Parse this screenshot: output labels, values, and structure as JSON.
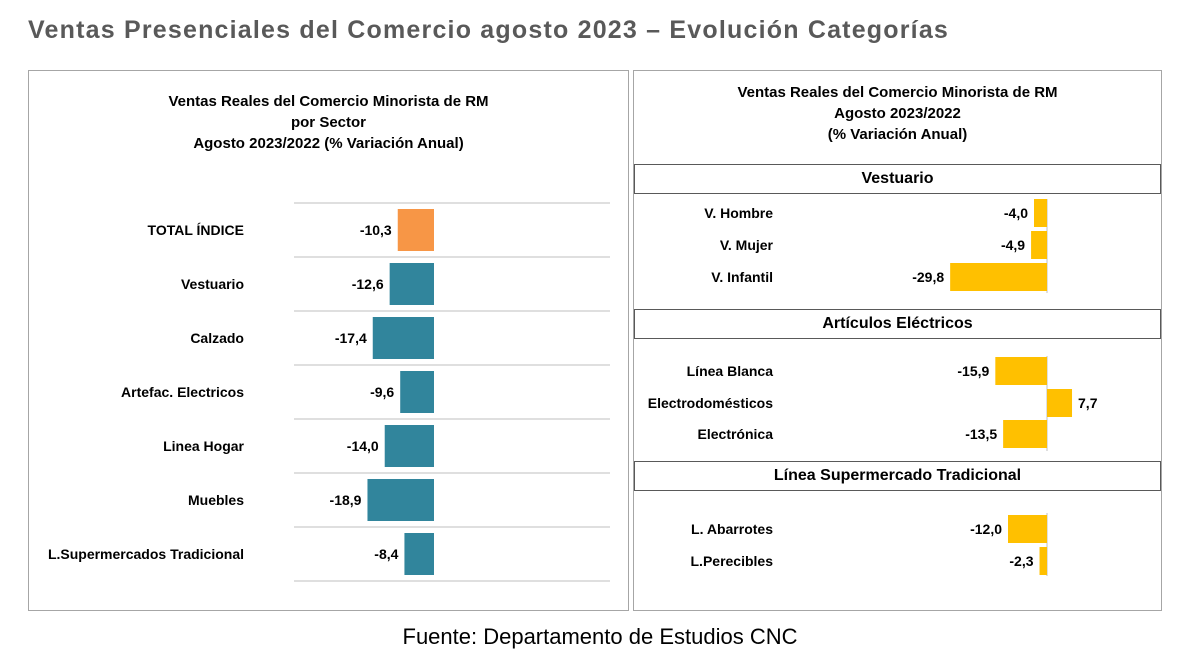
{
  "page_title": "Ventas Presenciales del Comercio agosto 2023 – Evolución Categorías",
  "source": "Fuente: Departamento de Estudios CNC",
  "left_chart": {
    "title_lines": [
      "Ventas Reales del Comercio Minorista de RM",
      "por Sector",
      "Agosto 2023/2022 (% Variación Anual)"
    ]
  },
  "right_chart": {
    "title_lines": [
      "Ventas Reales del Comercio Minorista de RM",
      "Agosto 2023/2022",
      "(% Variación Anual)"
    ],
    "sections": [
      "Vestuario",
      "Artículos Eléctricos",
      "Línea Supermercado Tradicional"
    ]
  },
  "chart_data": [
    {
      "type": "bar",
      "orientation": "horizontal",
      "title": "Ventas Reales del Comercio Minorista de RM por Sector Agosto 2023/2022 (% Variación Anual)",
      "categories": [
        "TOTAL ÍNDICE",
        "Vestuario",
        "Calzado",
        "Artefac. Electricos",
        "Linea Hogar",
        "Muebles",
        "L.Supermercados Tradicional"
      ],
      "values": [
        -10.3,
        -12.6,
        -17.4,
        -9.6,
        -14.0,
        -18.9,
        -8.4
      ],
      "value_labels": [
        "-10,3",
        "-12,6",
        "-17,4",
        "-9,6",
        "-14,0",
        "-18,9",
        "-8,4"
      ],
      "colors": [
        "#f79646",
        "#31859c",
        "#31859c",
        "#31859c",
        "#31859c",
        "#31859c",
        "#31859c"
      ],
      "grid": "horizontal separators"
    },
    {
      "type": "bar",
      "orientation": "horizontal",
      "title": "Ventas Reales del Comercio Minorista de RM Agosto 2023/2022 (% Variación Anual)",
      "groups": [
        {
          "name": "Vestuario",
          "categories": [
            "V. Hombre",
            "V. Mujer",
            "V. Infantil"
          ],
          "values": [
            -4.0,
            -4.9,
            -29.8
          ],
          "value_labels": [
            "-4,0",
            "-4,9",
            "-29,8"
          ]
        },
        {
          "name": "Artículos Eléctricos",
          "categories": [
            "Línea Blanca",
            "Electrodomésticos",
            "Electrónica"
          ],
          "values": [
            -15.9,
            7.7,
            -13.5
          ],
          "value_labels": [
            "-15,9",
            "7,7",
            "-13,5"
          ]
        },
        {
          "name": "Línea Supermercado Tradicional",
          "categories": [
            "L. Abarrotes",
            "L.Perecibles"
          ],
          "values": [
            -12.0,
            -2.3
          ],
          "value_labels": [
            "-12,0",
            "-2,3"
          ]
        }
      ],
      "color": "#ffc000"
    }
  ]
}
